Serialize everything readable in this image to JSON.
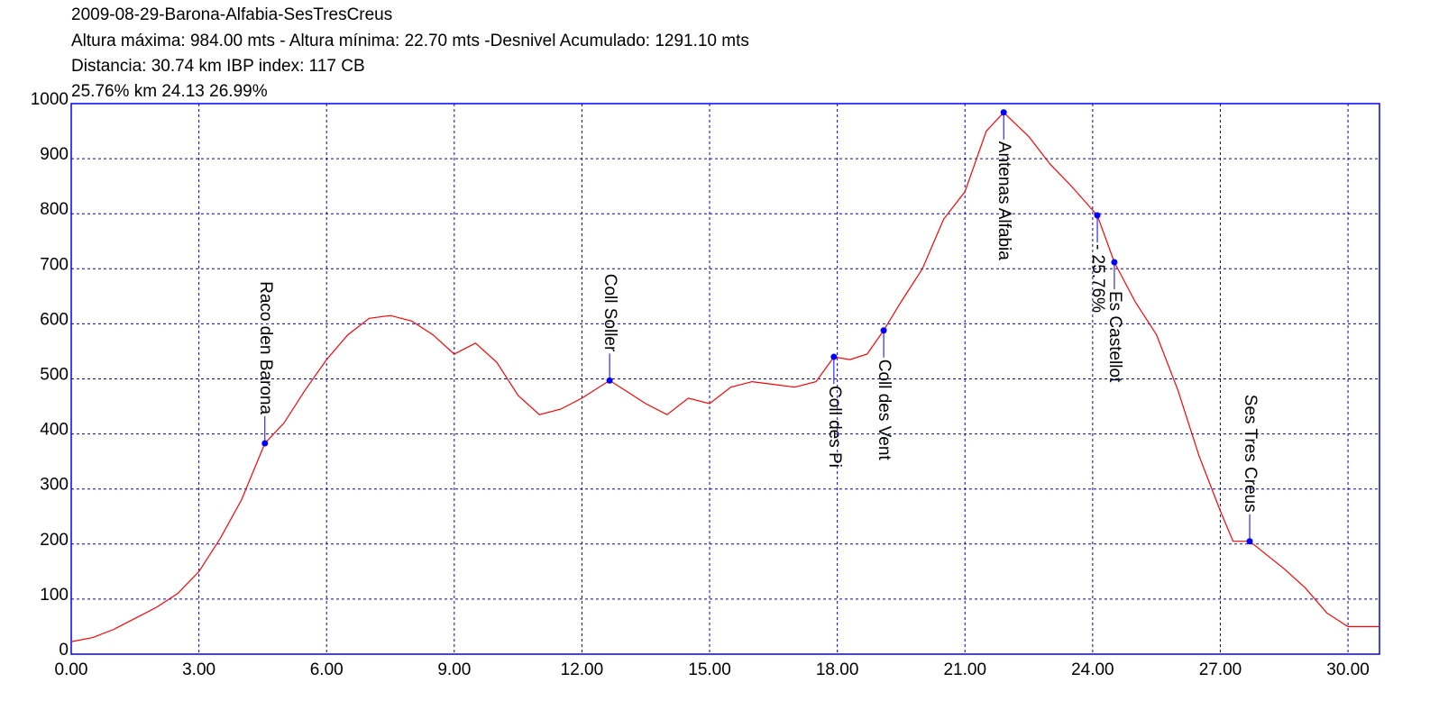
{
  "chart_data": {
    "type": "line",
    "title": "2009-08-29-Barona-Alfabia-SesTresCreus",
    "subtitle_lines": [
      "Altura máxima: 984.00 mts - Altura mínima: 22.70 mts -Desnivel Acumulado: 1291.10 mts",
      "Distancia: 30.74 km IBP index: 117 CB",
      "25.76% km 24.13  26.99%"
    ],
    "xlim": [
      0,
      30.74
    ],
    "ylim": [
      0,
      1000
    ],
    "xticks": [
      {
        "value": 0,
        "label": "0.00"
      },
      {
        "value": 3,
        "label": "3.00"
      },
      {
        "value": 6,
        "label": "6.00"
      },
      {
        "value": 9,
        "label": "9.00"
      },
      {
        "value": 12,
        "label": "12.00"
      },
      {
        "value": 15,
        "label": "15.00"
      },
      {
        "value": 18,
        "label": "18.00"
      },
      {
        "value": 21,
        "label": "21.00"
      },
      {
        "value": 24,
        "label": "24.00"
      },
      {
        "value": 27,
        "label": "27.00"
      },
      {
        "value": 30,
        "label": "30.00"
      }
    ],
    "yticks": [
      0,
      100,
      200,
      300,
      400,
      500,
      600,
      700,
      800,
      900,
      1000
    ],
    "grid": true,
    "x": [
      0,
      0.5,
      1,
      1.5,
      2,
      2.5,
      3,
      3.5,
      4,
      4.55,
      5,
      5.5,
      6,
      6.5,
      7,
      7.5,
      8,
      8.5,
      9,
      9.5,
      10,
      10.5,
      11,
      11.5,
      12,
      12.65,
      13,
      13.5,
      14,
      14.5,
      15,
      15.5,
      16,
      16.5,
      17,
      17.5,
      17.92,
      18.3,
      18.7,
      19.09,
      19.5,
      20,
      20.5,
      21,
      21.5,
      21.91,
      22.5,
      23,
      23.5,
      24.11,
      24.51,
      25,
      25.5,
      26,
      26.5,
      27,
      27.3,
      27.69,
      28.5,
      29,
      29.5,
      30,
      30.74
    ],
    "series": [
      {
        "color": "#ff0000",
        "values": [
          22.7,
          30,
          45,
          65,
          85,
          110,
          150,
          210,
          280,
          383,
          420,
          480,
          535,
          580,
          610,
          615,
          605,
          580,
          545,
          565,
          530,
          470,
          435,
          445,
          465,
          497,
          480,
          455,
          435,
          465,
          455,
          485,
          495,
          490,
          485,
          495,
          540,
          535,
          545,
          588,
          640,
          700,
          790,
          840,
          950,
          984,
          940,
          890,
          850,
          797,
          712,
          640,
          580,
          480,
          360,
          260,
          205,
          205,
          155,
          120,
          75,
          50,
          50
        ]
      }
    ],
    "waypoints": [
      {
        "name": "Raco den Barona",
        "x": 4.55,
        "y": 383,
        "side": "above"
      },
      {
        "name": "Coll Soller",
        "x": 12.65,
        "y": 497,
        "side": "above"
      },
      {
        "name": "Coll des Pi",
        "x": 17.92,
        "y": 540,
        "side": "below"
      },
      {
        "name": "Coll des Vent",
        "x": 19.09,
        "y": 588,
        "side": "below"
      },
      {
        "name": "Antenas Alfabia",
        "x": 21.91,
        "y": 984,
        "side": "below"
      },
      {
        "name": "- 25.76%",
        "x": 24.11,
        "y": 797,
        "side": "below"
      },
      {
        "name": "Es Castellot",
        "x": 24.51,
        "y": 712,
        "side": "below"
      },
      {
        "name": "Ses Tres Creus",
        "x": 27.69,
        "y": 205,
        "side": "above"
      }
    ],
    "point_color": "#0000ff"
  }
}
